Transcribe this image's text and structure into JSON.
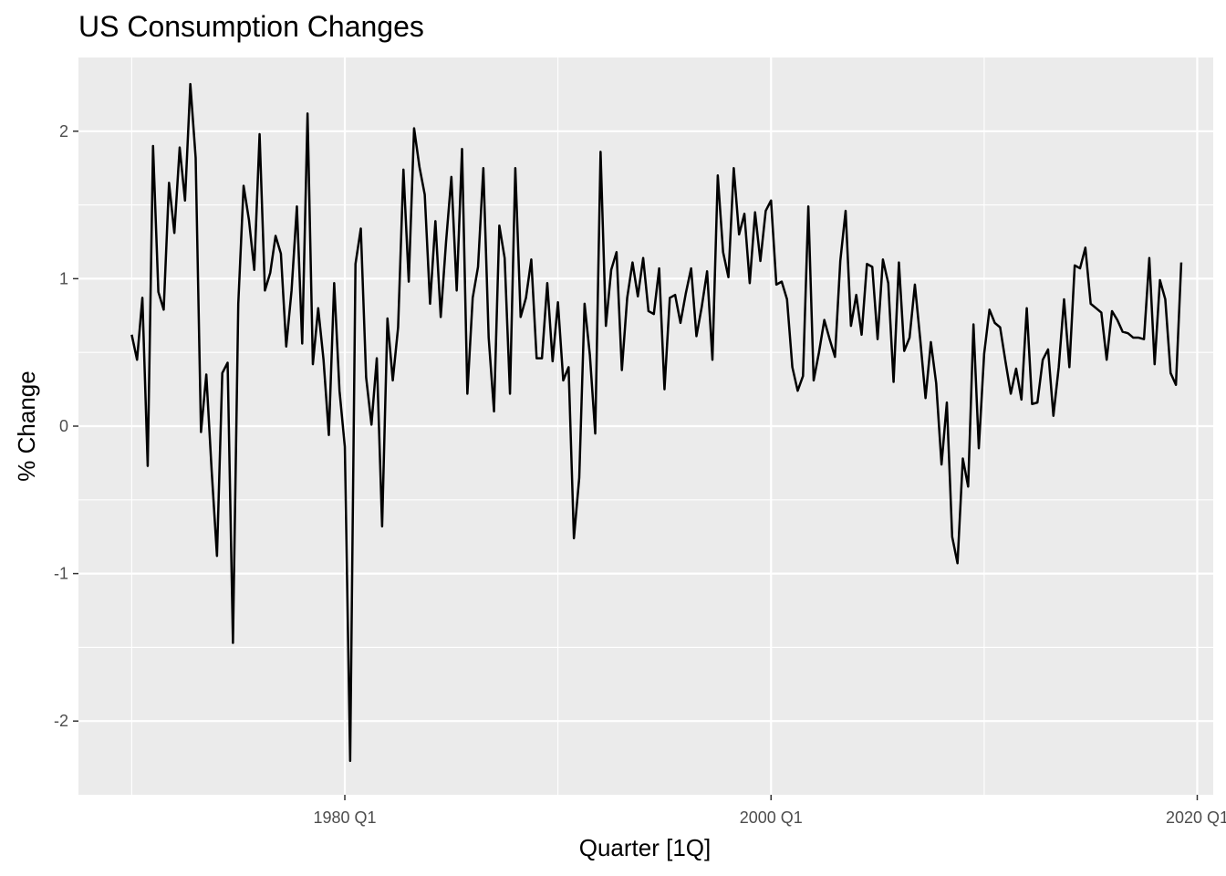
{
  "chart_data": {
    "type": "line",
    "title": "US Consumption Changes",
    "xlabel": "Quarter [1Q]",
    "ylabel": "% Change",
    "x_start": "1970 Q1",
    "x_ticks": [
      "1980 Q1",
      "2000 Q1",
      "2020 Q1"
    ],
    "y_ticks": [
      "-2",
      "-1",
      "0",
      "1",
      "2"
    ],
    "xlim": [
      "1967 Q3",
      "2020 Q4"
    ],
    "ylim": [
      -2.5,
      2.5
    ],
    "grid": true,
    "colors": {
      "panel": "#ebebeb",
      "grid": "#ffffff",
      "line": "#000000",
      "tick_text": "#4d4d4d"
    },
    "series": [
      {
        "values": [
          0.62,
          0.45,
          0.87,
          -0.27,
          1.9,
          0.91,
          0.79,
          1.65,
          1.31,
          1.89,
          1.53,
          2.32,
          1.82,
          -0.04,
          0.35,
          -0.3,
          -0.88,
          0.36,
          0.43,
          -1.47,
          0.83,
          1.63,
          1.4,
          1.06,
          1.98,
          0.92,
          1.04,
          1.29,
          1.17,
          0.54,
          0.92,
          1.49,
          0.56,
          2.12,
          0.42,
          0.8,
          0.45,
          -0.06,
          0.97,
          0.24,
          -0.14,
          -2.27,
          1.1,
          1.34,
          0.33,
          0.01,
          0.46,
          -0.68,
          0.73,
          0.31,
          0.67,
          1.74,
          0.98,
          2.02,
          1.76,
          1.57,
          0.83,
          1.39,
          0.74,
          1.25,
          1.69,
          0.92,
          1.88,
          0.22,
          0.87,
          1.08,
          1.75,
          0.6,
          0.1,
          1.36,
          1.14,
          0.22,
          1.75,
          0.74,
          0.87,
          1.13,
          0.46,
          0.46,
          0.97,
          0.44,
          0.84,
          0.31,
          0.4,
          -0.76,
          -0.35,
          0.83,
          0.48,
          -0.05,
          1.86,
          0.68,
          1.06,
          1.18,
          0.38,
          0.87,
          1.11,
          0.88,
          1.14,
          0.78,
          0.76,
          1.07,
          0.25,
          0.87,
          0.89,
          0.7,
          0.9,
          1.07,
          0.61,
          0.81,
          1.05,
          0.45,
          1.7,
          1.18,
          1.01,
          1.75,
          1.3,
          1.44,
          0.97,
          1.45,
          1.12,
          1.46,
          1.53,
          0.96,
          0.98,
          0.86,
          0.4,
          0.24,
          0.34,
          1.49,
          0.31,
          0.5,
          0.72,
          0.59,
          0.47,
          1.12,
          1.46,
          0.68,
          0.89,
          0.62,
          1.1,
          1.08,
          0.59,
          1.13,
          0.97,
          0.3,
          1.11,
          0.51,
          0.6,
          0.96,
          0.59,
          0.19,
          0.57,
          0.29,
          -0.26,
          0.16,
          -0.75,
          -0.93,
          -0.22,
          -0.41,
          0.69,
          -0.15,
          0.49,
          0.79,
          0.7,
          0.67,
          0.44,
          0.22,
          0.39,
          0.18,
          0.8,
          0.15,
          0.16,
          0.45,
          0.52,
          0.07,
          0.4,
          0.86,
          0.4,
          1.09,
          1.07,
          1.21,
          0.83,
          0.8,
          0.77,
          0.45,
          0.78,
          0.72,
          0.64,
          0.63,
          0.6,
          0.6,
          0.59,
          1.14,
          0.42,
          0.99,
          0.86,
          0.36,
          0.28,
          1.11
        ]
      }
    ]
  }
}
